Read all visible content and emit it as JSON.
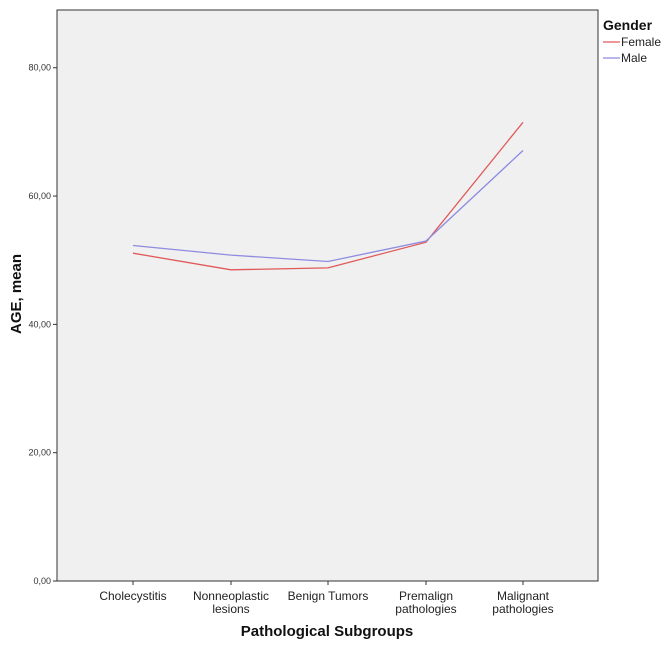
{
  "chart_data": {
    "type": "line",
    "categories": [
      [
        "Cholecystitis"
      ],
      [
        "Nonneoplastic",
        "lesions"
      ],
      [
        "Benign Tumors"
      ],
      [
        "Premalign",
        "pathologies"
      ],
      [
        "Malignant",
        "pathologies"
      ]
    ],
    "series": [
      {
        "name": "Female",
        "color": "#e0595a",
        "values": [
          51.1,
          48.5,
          48.8,
          52.8,
          71.5
        ]
      },
      {
        "name": "Male",
        "color": "#8d8ce0",
        "values": [
          52.3,
          50.8,
          49.8,
          53.0,
          67.1
        ]
      }
    ],
    "xlabel": "Pathological Subgroups",
    "ylabel": "AGE, mean",
    "ylim": [
      0,
      89
    ],
    "yticks": [
      0,
      20,
      40,
      60,
      80
    ],
    "ytick_labels": [
      "0,00",
      "20,00",
      "40,00",
      "60,00",
      "80,00"
    ],
    "grid": false,
    "legend": {
      "title": "Gender",
      "position": "top-right"
    },
    "plot_background": "#f0f0f0"
  }
}
